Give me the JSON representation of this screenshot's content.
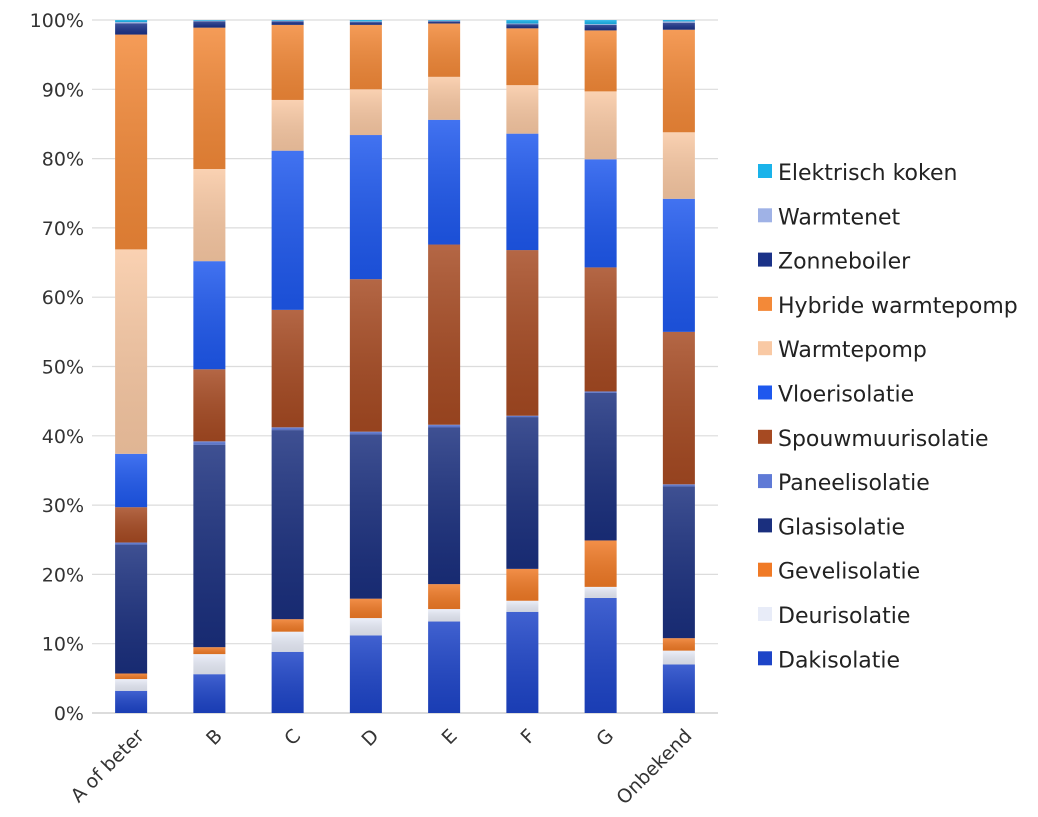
{
  "chart_data": {
    "type": "bar",
    "stacked": true,
    "normalized": true,
    "categories": [
      "A of beter",
      "B",
      "C",
      "D",
      "E",
      "F",
      "G",
      "Onbekend"
    ],
    "y_ticks": [
      "0%",
      "10%",
      "20%",
      "30%",
      "40%",
      "50%",
      "60%",
      "70%",
      "80%",
      "90%",
      "100%"
    ],
    "ylim": [
      0,
      100
    ],
    "grid": "horizontal",
    "legend_position": "right",
    "series": [
      {
        "name": "Dakisolatie",
        "color": "#1d44c8",
        "values": [
          3.2,
          5.6,
          8.8,
          11.2,
          13.2,
          14.6,
          16.6,
          7.0
        ]
      },
      {
        "name": "Deurisolatie",
        "color": "#e8ecf8",
        "values": [
          1.7,
          2.9,
          2.9,
          2.5,
          1.8,
          1.6,
          1.6,
          2.0
        ]
      },
      {
        "name": "Gevelisolatie",
        "color": "#f07a26",
        "values": [
          0.8,
          1.0,
          1.8,
          2.8,
          3.6,
          4.6,
          6.7,
          1.8
        ]
      },
      {
        "name": "Glasisolatie",
        "color": "#1a2f7e",
        "values": [
          18.6,
          29.2,
          27.2,
          23.7,
          22.6,
          21.9,
          21.3,
          21.9
        ]
      },
      {
        "name": "Paneelisolatie",
        "color": "#5f7ad6",
        "values": [
          0.3,
          0.5,
          0.4,
          0.4,
          0.4,
          0.2,
          0.2,
          0.3
        ]
      },
      {
        "name": "Spouwmuurisolatie",
        "color": "#a64a22",
        "values": [
          5.1,
          10.4,
          16.9,
          22.0,
          26.0,
          23.9,
          17.9,
          22.0
        ]
      },
      {
        "name": "Vloerisolatie",
        "color": "#1e58ee",
        "values": [
          7.7,
          15.6,
          22.9,
          20.8,
          18.0,
          16.8,
          15.6,
          19.2
        ]
      },
      {
        "name": "Warmtepomp",
        "color": "#f9c9a4",
        "values": [
          29.5,
          13.3,
          7.3,
          6.6,
          6.2,
          7.0,
          9.8,
          9.6
        ]
      },
      {
        "name": "Hybride warmtepomp",
        "color": "#f38938",
        "values": [
          31.0,
          20.4,
          10.8,
          9.3,
          7.7,
          8.2,
          8.8,
          14.8
        ]
      },
      {
        "name": "Zonneboiler",
        "color": "#1b3288",
        "values": [
          1.6,
          0.9,
          0.5,
          0.4,
          0.3,
          0.6,
          0.8,
          1.0
        ]
      },
      {
        "name": "Warmtenet",
        "color": "#9fb2e6",
        "values": [
          0.2,
          0.1,
          0.1,
          0.1,
          0.1,
          0.1,
          0.1,
          0.2
        ]
      },
      {
        "name": "Elektrisch koken",
        "color": "#1ab3ea",
        "values": [
          0.3,
          0.1,
          0.1,
          0.2,
          0.1,
          0.5,
          0.6,
          0.2
        ]
      }
    ]
  }
}
